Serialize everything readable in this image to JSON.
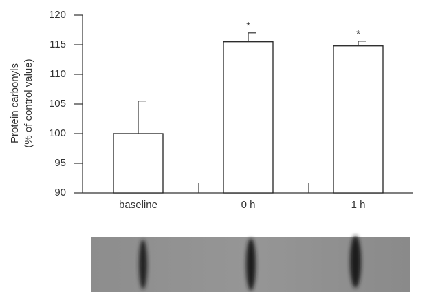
{
  "chart_data": {
    "type": "bar",
    "y_label": [
      "Protein carbonyls",
      "(% of control value)"
    ],
    "categories": [
      "baseline",
      "0 h",
      "1 h"
    ],
    "values": [
      100,
      115.5,
      114.8
    ],
    "errors": [
      5.5,
      1.5,
      0.8
    ],
    "significance": [
      null,
      "*",
      "*"
    ],
    "color": "#ffffff",
    "ylim": [
      90,
      120
    ],
    "yticks": [
      90,
      95,
      100,
      105,
      110,
      115,
      120
    ],
    "grid": false
  }
}
